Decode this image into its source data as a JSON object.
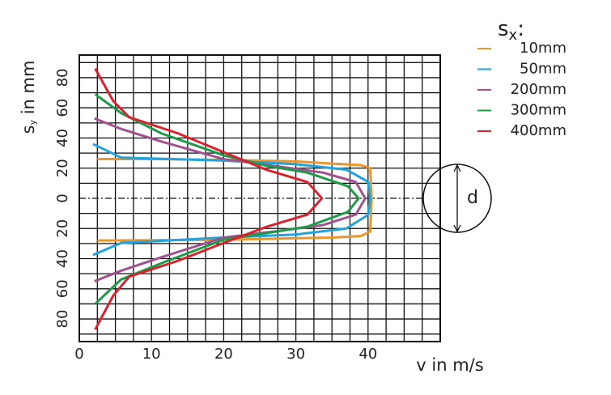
{
  "chart_data": {
    "type": "line",
    "x_label": "v in m/s",
    "y_label": {
      "main": "s",
      "sub": "y",
      "rest": " in mm"
    },
    "legend_title": {
      "main": "s",
      "sub": "x",
      "rest": ":"
    },
    "circle_label": "d",
    "xlim": [
      0,
      50
    ],
    "ylim": [
      -95,
      95
    ],
    "xticks": [
      0,
      10,
      20,
      30,
      40
    ],
    "yticks": [
      {
        "value": -80,
        "label": "80"
      },
      {
        "value": -60,
        "label": "60"
      },
      {
        "value": -40,
        "label": "40"
      },
      {
        "value": -20,
        "label": "20"
      },
      0,
      20,
      40,
      60,
      80
    ],
    "x_gridlines": [
      2.5,
      5,
      7.5,
      10,
      12.5,
      15,
      17.5,
      20,
      22.5,
      25,
      27.5,
      30,
      32.5,
      35,
      37.5,
      40,
      42.5,
      45,
      47.5
    ],
    "y_gridlines": [
      -90,
      -80,
      -70,
      -60,
      -50,
      -40,
      -30,
      -20,
      -10,
      10,
      20,
      30,
      40,
      50,
      60,
      70,
      80,
      90
    ],
    "series": [
      {
        "name": "10mm",
        "color": "#e8962e",
        "x": [
          2.5,
          20,
          35,
          39,
          40.3,
          40.5,
          40.3,
          39,
          35,
          30,
          20,
          10,
          2.5
        ],
        "values": [
          -28,
          -27.5,
          -26,
          -25,
          -22,
          0,
          20,
          22,
          23,
          24.5,
          25.5,
          26,
          26
        ]
      },
      {
        "name": "50mm",
        "color": "#22a3dc",
        "x": [
          1.9,
          5.8,
          20,
          30,
          37,
          40,
          40.3,
          40,
          37,
          30,
          20,
          5.8,
          1.9
        ],
        "values": [
          -37.6,
          -29.6,
          -26,
          -24,
          -20,
          -11,
          0,
          11,
          19,
          22.6,
          25,
          27,
          36
        ]
      },
      {
        "name": "200mm",
        "color": "#a0528f",
        "x": [
          2.1,
          5.8,
          11.4,
          20,
          27,
          33.8,
          38.3,
          39.6,
          38.3,
          33.8,
          27,
          20,
          11.4,
          5.8,
          2.1
        ],
        "values": [
          -55,
          -48,
          -39,
          -26,
          -22,
          -17.7,
          -10.8,
          0,
          10.8,
          17,
          21.5,
          26,
          37.6,
          46,
          53
        ]
      },
      {
        "name": "300mm",
        "color": "#1f9a4a",
        "x": [
          2.2,
          5.8,
          11.4,
          20,
          26,
          31.6,
          37.2,
          38.7,
          37.2,
          31.6,
          26,
          20,
          11.4,
          5.8,
          2.2
        ],
        "values": [
          -70,
          -53.8,
          -43,
          -27.4,
          -23,
          -18.8,
          -9,
          0,
          8,
          17,
          21.5,
          28.5,
          43,
          56.5,
          69
        ]
      },
      {
        "name": "400mm",
        "color": "#d8232e",
        "x": [
          2.2,
          4.7,
          6.9,
          13.7,
          20,
          26,
          31.6,
          33.6,
          31.6,
          26,
          20,
          13.7,
          6.9,
          4.7,
          2.2
        ],
        "values": [
          -87,
          -64.5,
          -52,
          -41.4,
          -29.6,
          -18.8,
          -10.8,
          0,
          10.8,
          18.8,
          30.6,
          43,
          53.8,
          64.5,
          86
        ]
      }
    ]
  }
}
